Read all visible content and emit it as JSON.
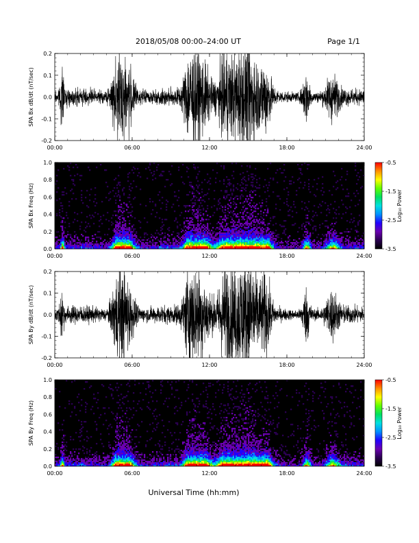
{
  "header": {
    "title": "2018/05/08  00:00–24:00 UT",
    "page": "Page 1/1"
  },
  "footer": {
    "xlabel": "Universal Time (hh:mm)"
  },
  "colorbar": {
    "label": "Log₁₀ Power",
    "ticks": [
      "-0.5",
      "-1.5",
      "-2.5",
      "-3.5"
    ],
    "range": [
      -3.5,
      -0.5
    ],
    "colors": [
      "#000000",
      "#2a0050",
      "#6a00b0",
      "#2000ff",
      "#0090ff",
      "#00e0e0",
      "#00e060",
      "#60ff00",
      "#ffff00",
      "#ff9000",
      "#ff0000"
    ]
  },
  "chart_data": [
    {
      "type": "line",
      "ylabel": "SPA Bx dB/dt (nT/sec)",
      "xlim": [
        "00:00",
        "24:00"
      ],
      "ylim": [
        -0.2,
        0.2
      ],
      "xticks": [
        "00:00",
        "06:00",
        "12:00",
        "18:00",
        "24:00"
      ],
      "yticks": [
        "0.2",
        "0.1",
        "0.0",
        "-0.1",
        "-0.2"
      ],
      "series_color": "#000000"
    },
    {
      "type": "heatmap",
      "ylabel": "SPA Bx Freq (Hz)",
      "xlim": [
        "00:00",
        "24:00"
      ],
      "ylim": [
        0.0,
        1.0
      ],
      "xticks": [
        "00:00",
        "06:00",
        "12:00",
        "18:00",
        "24:00"
      ],
      "yticks": [
        "1.0",
        "0.8",
        "0.6",
        "0.4",
        "0.2",
        "0.0"
      ],
      "zlim": [
        -3.5,
        -0.5
      ]
    },
    {
      "type": "line",
      "ylabel": "SPA By dB/dt (nT/sec)",
      "xlim": [
        "00:00",
        "24:00"
      ],
      "ylim": [
        -0.2,
        0.2
      ],
      "xticks": [
        "00:00",
        "06:00",
        "12:00",
        "18:00",
        "24:00"
      ],
      "yticks": [
        "0.2",
        "0.1",
        "0.0",
        "-0.1",
        "-0.2"
      ],
      "series_color": "#000000"
    },
    {
      "type": "heatmap",
      "ylabel": "SPA By Freq (Hz)",
      "xlim": [
        "00:00",
        "24:00"
      ],
      "ylim": [
        0.0,
        1.0
      ],
      "xticks": [
        "00:00",
        "06:00",
        "12:00",
        "18:00",
        "24:00"
      ],
      "yticks": [
        "1.0",
        "0.8",
        "0.6",
        "0.4",
        "0.2",
        "0.0"
      ],
      "zlim": [
        -3.5,
        -0.5
      ]
    }
  ]
}
